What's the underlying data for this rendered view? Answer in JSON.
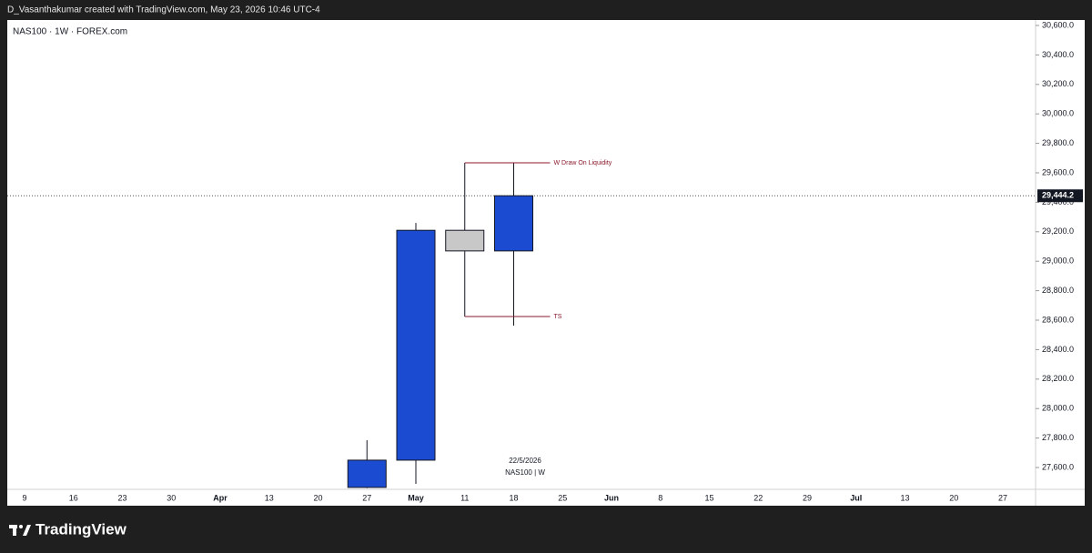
{
  "header": {
    "text": "D_Vasanthakumar created with TradingView.com, May 23, 2026 10:46 UTC-4"
  },
  "footer": {
    "brand": "TradingView"
  },
  "chart_data": {
    "type": "candlestick",
    "title": "NAS100 · 1W · FOREX.com",
    "categories": [
      "9",
      "16",
      "23",
      "30",
      "Apr",
      "13",
      "20",
      "27",
      "May",
      "11",
      "18",
      "25",
      "Jun",
      "8",
      "15",
      "22",
      "29",
      "Jul",
      "13",
      "20",
      "27"
    ],
    "open": [
      null,
      null,
      null,
      null,
      null,
      null,
      null,
      27465,
      27650,
      29210,
      29070,
      null,
      null,
      null,
      null,
      null,
      null,
      null,
      null,
      null,
      null
    ],
    "high": [
      null,
      null,
      null,
      null,
      null,
      null,
      null,
      27785,
      29260,
      29668,
      29668,
      null,
      null,
      null,
      null,
      null,
      null,
      null,
      null,
      null,
      null
    ],
    "low": [
      null,
      null,
      null,
      null,
      null,
      null,
      null,
      27460,
      27489,
      28625,
      28563,
      null,
      null,
      null,
      null,
      null,
      null,
      null,
      null,
      null,
      null
    ],
    "close": [
      null,
      null,
      null,
      null,
      null,
      null,
      null,
      27650,
      29210,
      29070,
      29444.2,
      null,
      null,
      null,
      null,
      null,
      null,
      null,
      null,
      null,
      null
    ],
    "candle_colors": [
      null,
      null,
      null,
      null,
      null,
      null,
      null,
      "#1a4bd1",
      "#1a4bd1",
      "#c8c8c8",
      "#1a4bd1",
      null,
      null,
      null,
      null,
      null,
      null,
      null,
      null,
      null,
      null
    ],
    "ylim": [
      27452,
      30637
    ],
    "yticks": [
      {
        "value": 27600,
        "label": "27,600.0"
      },
      {
        "value": 27800,
        "label": "27,800.0"
      },
      {
        "value": 28000,
        "label": "28,000.0"
      },
      {
        "value": 28200,
        "label": "28,200.0"
      },
      {
        "value": 28400,
        "label": "28,400.0"
      },
      {
        "value": 28600,
        "label": "28,600.0"
      },
      {
        "value": 28800,
        "label": "28,800.0"
      },
      {
        "value": 29000,
        "label": "29,000.0"
      },
      {
        "value": 29200,
        "label": "29,200.0"
      },
      {
        "value": 29400,
        "label": "29,400.0"
      },
      {
        "value": 29600,
        "label": "29,600.0"
      },
      {
        "value": 29800,
        "label": "29,800.0"
      },
      {
        "value": 30000,
        "label": "30,000.0"
      },
      {
        "value": 30200,
        "label": "30,200.0"
      },
      {
        "value": 30400,
        "label": "30,400.0"
      },
      {
        "value": 30600,
        "label": "30,600.0"
      }
    ],
    "levels": [
      {
        "label": "W Draw On Liquidity",
        "value": 29668,
        "color": "#8b1a2b"
      },
      {
        "label": "TS",
        "value": 28625,
        "color": "#8b1a2b"
      }
    ],
    "last_price": {
      "value": 29444.2,
      "label": "29,444.2"
    },
    "annotation": [
      "22/5/2026",
      "NAS100 | W"
    ]
  }
}
